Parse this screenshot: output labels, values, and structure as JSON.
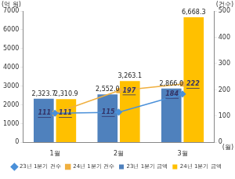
{
  "chart_data": {
    "type": "bar",
    "categories": [
      "1월",
      "2월",
      "3월"
    ],
    "x_label": "(월)",
    "y_label": "(억 원)",
    "y2_label": "(건수)",
    "ylim": [
      0,
      7000
    ],
    "yticks": [
      0,
      1000,
      2000,
      3000,
      4000,
      5000,
      6000,
      7000
    ],
    "y2lim": [
      0,
      500
    ],
    "y2ticks": [
      0,
      100,
      200,
      300,
      400,
      500
    ],
    "grid": false,
    "legend": "bottom",
    "data_labels": true,
    "series": [
      {
        "name": "23년 1분기 금액",
        "type": "bar",
        "color": "#4F81BD",
        "values": [
          2323.7,
          2552.0,
          2866.0
        ],
        "value_labels": [
          "2,323.7",
          "2,552.0",
          "2,866.0"
        ]
      },
      {
        "name": "24년 1분기 금액",
        "type": "bar",
        "color": "#FFC000",
        "values": [
          2310.9,
          3263.1,
          6668.3
        ],
        "value_labels": [
          "2,310.9",
          "3,263.1",
          "6,668.3"
        ]
      },
      {
        "name": "23년 1분기 건수",
        "type": "line",
        "axis": "y2",
        "color": "#4A90D9",
        "marker": "diamond",
        "line_style": "solid",
        "values": [
          111,
          115,
          184
        ]
      },
      {
        "name": "24년 1분기 건수",
        "type": "line",
        "axis": "y2",
        "color": "#F0B040",
        "marker": "square",
        "line_style": "solid",
        "values": [
          111,
          197,
          222
        ]
      }
    ]
  }
}
